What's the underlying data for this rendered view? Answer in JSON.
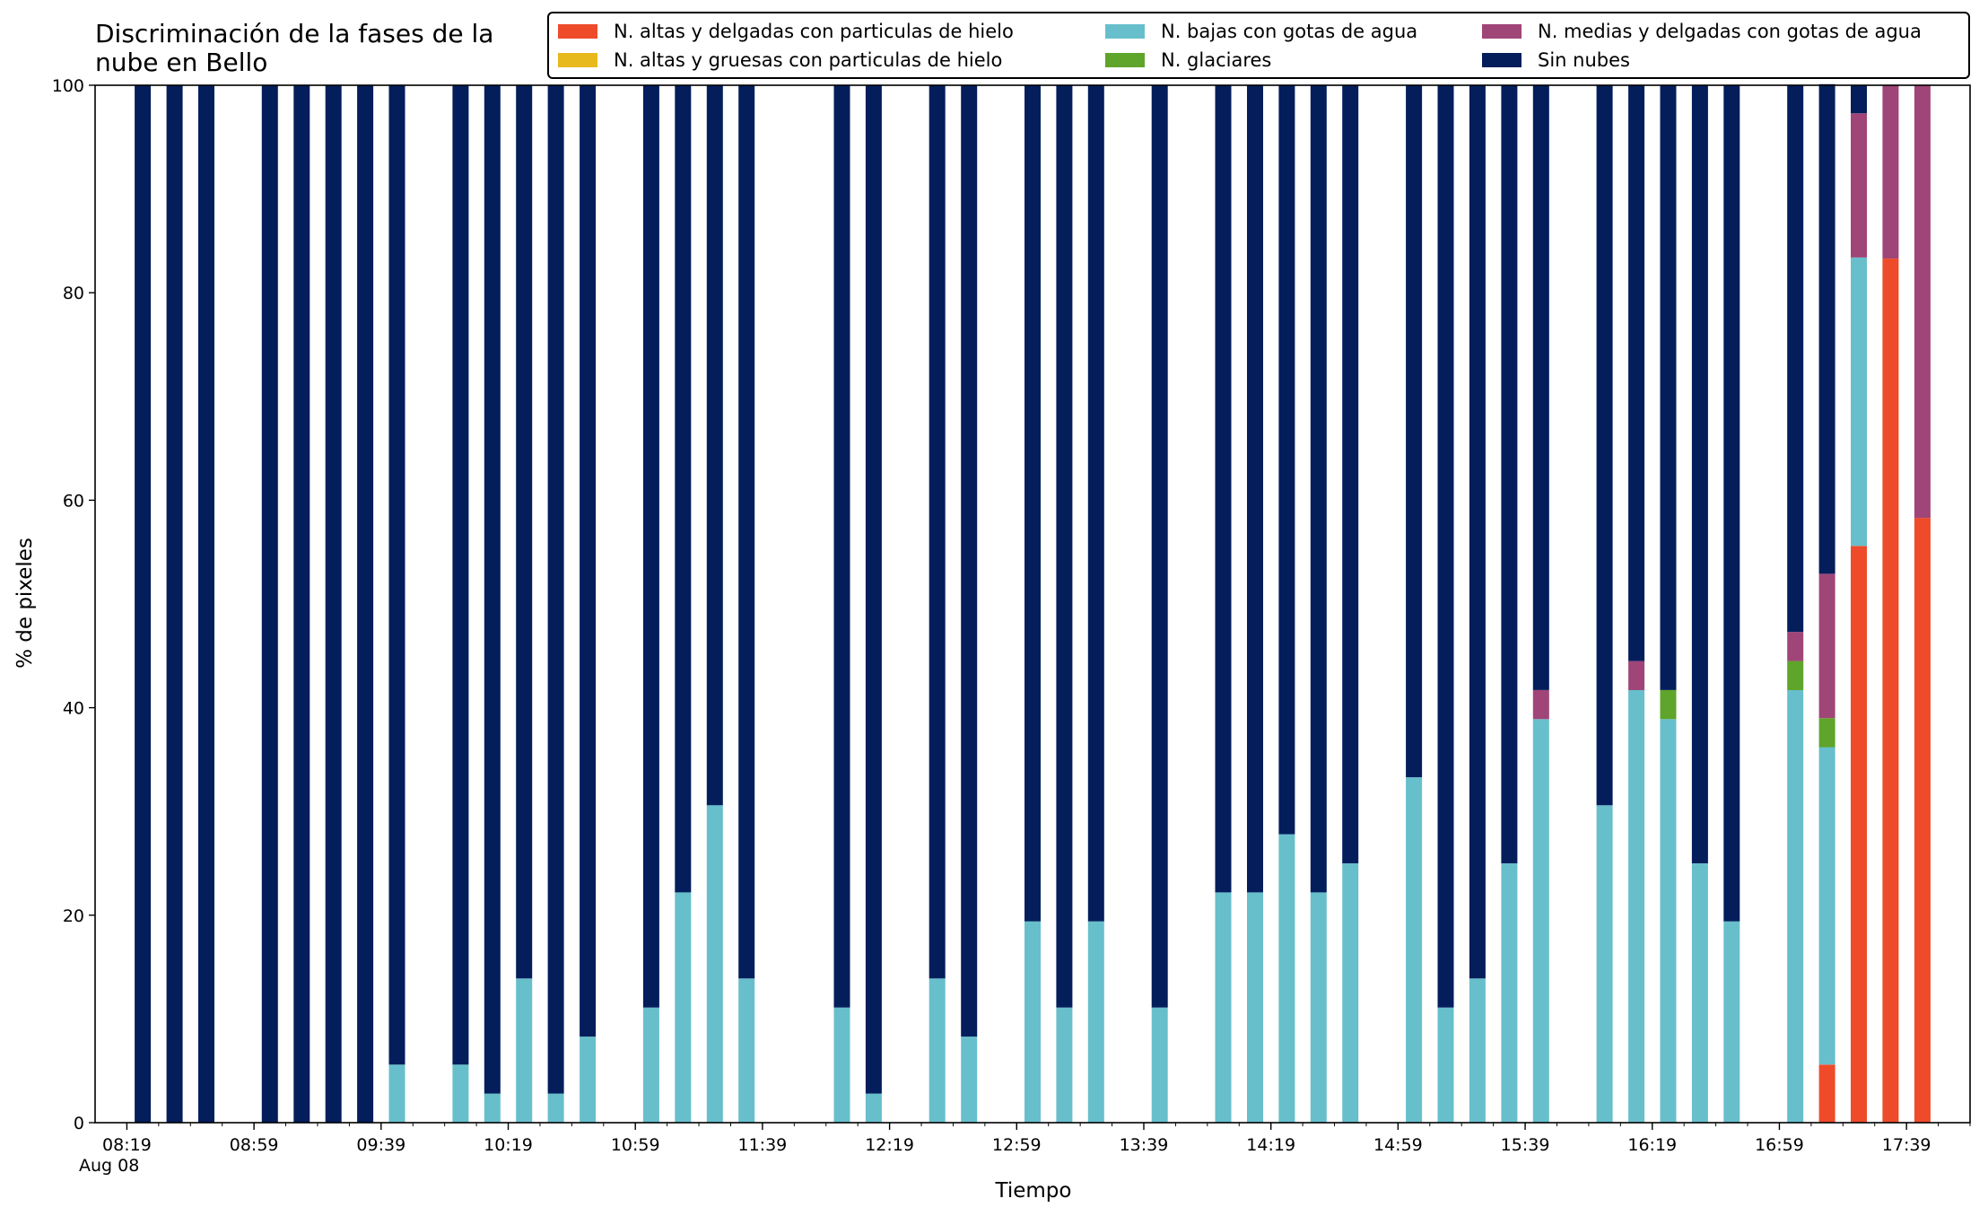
{
  "chart_data": {
    "type": "bar",
    "stacked": true,
    "title": "Discriminación de la fases de la\nnube en Bello",
    "xlabel": "Tiempo",
    "ylabel": "% de pixeles",
    "ylim": [
      0,
      100
    ],
    "yticks": [
      0,
      20,
      40,
      60,
      80,
      100
    ],
    "xticks": [
      "08:19",
      "08:59",
      "09:39",
      "10:19",
      "10:59",
      "11:39",
      "12:19",
      "12:59",
      "13:39",
      "14:19",
      "14:59",
      "15:39",
      "16:19",
      "16:59",
      "17:39"
    ],
    "x_date_label": "Aug 08",
    "legend_position": "top",
    "x": [
      "08:24",
      "08:34",
      "08:44",
      "09:04",
      "09:14",
      "09:24",
      "09:34",
      "09:44",
      "10:04",
      "10:14",
      "10:24",
      "10:34",
      "10:44",
      "11:04",
      "11:14",
      "11:24",
      "11:34",
      "12:04",
      "12:14",
      "12:34",
      "12:44",
      "13:04",
      "13:14",
      "13:24",
      "13:44",
      "14:04",
      "14:14",
      "14:24",
      "14:34",
      "14:44",
      "15:04",
      "15:14",
      "15:24",
      "15:34",
      "15:44",
      "16:04",
      "16:14",
      "16:24",
      "16:34",
      "16:44",
      "17:04",
      "17:14",
      "17:24",
      "17:34",
      "17:44"
    ],
    "series": [
      {
        "name": "N. altas y delgadas con particulas de hielo",
        "color": "#ee4b2b",
        "values": [
          0,
          0,
          0,
          0,
          0,
          0,
          0,
          0,
          0,
          0,
          0,
          0,
          0,
          0,
          0,
          0,
          0,
          0,
          0,
          0,
          0,
          0,
          0,
          0,
          0,
          0,
          0,
          0,
          0,
          0,
          0,
          0,
          0,
          0,
          0,
          0,
          0,
          0,
          0,
          0,
          0,
          5.6,
          55.6,
          83.3,
          58.3
        ]
      },
      {
        "name": "N. altas y gruesas con particulas de hielo",
        "color": "#e8b91c",
        "values": [
          0,
          0,
          0,
          0,
          0,
          0,
          0,
          0,
          0,
          0,
          0,
          0,
          0,
          0,
          0,
          0,
          0,
          0,
          0,
          0,
          0,
          0,
          0,
          0,
          0,
          0,
          0,
          0,
          0,
          0,
          0,
          0,
          0,
          0,
          0,
          0,
          0,
          0,
          0,
          0,
          0,
          0,
          0,
          0,
          0
        ]
      },
      {
        "name": "N. bajas con gotas de agua",
        "color": "#67bfcc",
        "values": [
          0,
          0,
          0,
          0,
          0,
          0,
          0,
          5.6,
          5.6,
          2.8,
          13.9,
          2.8,
          8.3,
          11.1,
          22.2,
          30.6,
          13.9,
          11.1,
          2.8,
          13.9,
          8.3,
          19.4,
          11.1,
          19.4,
          11.1,
          22.2,
          22.2,
          27.8,
          22.2,
          25.0,
          33.3,
          11.1,
          13.9,
          25.0,
          38.9,
          30.6,
          41.7,
          38.9,
          25.0,
          19.4,
          41.7,
          30.6,
          27.8,
          0,
          0
        ]
      },
      {
        "name": "N. glaciares",
        "color": "#5fa42b",
        "values": [
          0,
          0,
          0,
          0,
          0,
          0,
          0,
          0,
          0,
          0,
          0,
          0,
          0,
          0,
          0,
          0,
          0,
          0,
          0,
          0,
          0,
          0,
          0,
          0,
          0,
          0,
          0,
          0,
          0,
          0,
          0,
          0,
          0,
          0,
          0,
          0,
          0,
          2.8,
          0,
          0,
          2.8,
          2.8,
          0,
          0,
          0
        ]
      },
      {
        "name": "N. medias y delgadas con gotas de agua",
        "color": "#a04577",
        "values": [
          0,
          0,
          0,
          0,
          0,
          0,
          0,
          0,
          0,
          0,
          0,
          0,
          0,
          0,
          0,
          0,
          0,
          0,
          0,
          0,
          0,
          0,
          0,
          0,
          0,
          0,
          0,
          0,
          0,
          0,
          0,
          0,
          0,
          0,
          2.8,
          0,
          2.8,
          0,
          0,
          0,
          2.8,
          13.9,
          13.9,
          16.7,
          41.7
        ]
      },
      {
        "name": "Sin nubes",
        "color": "#041e5c",
        "values": [
          100,
          100,
          100,
          100,
          100,
          100,
          100,
          94.4,
          94.4,
          97.2,
          86.1,
          97.2,
          91.7,
          88.9,
          77.8,
          69.4,
          86.1,
          88.9,
          97.2,
          86.1,
          91.7,
          80.6,
          88.9,
          80.6,
          88.9,
          77.8,
          77.8,
          72.2,
          77.8,
          75.0,
          66.7,
          88.9,
          86.1,
          75.0,
          58.3,
          69.4,
          55.5,
          58.3,
          75.0,
          80.6,
          52.7,
          47.2,
          2.7,
          0,
          0
        ]
      }
    ]
  }
}
